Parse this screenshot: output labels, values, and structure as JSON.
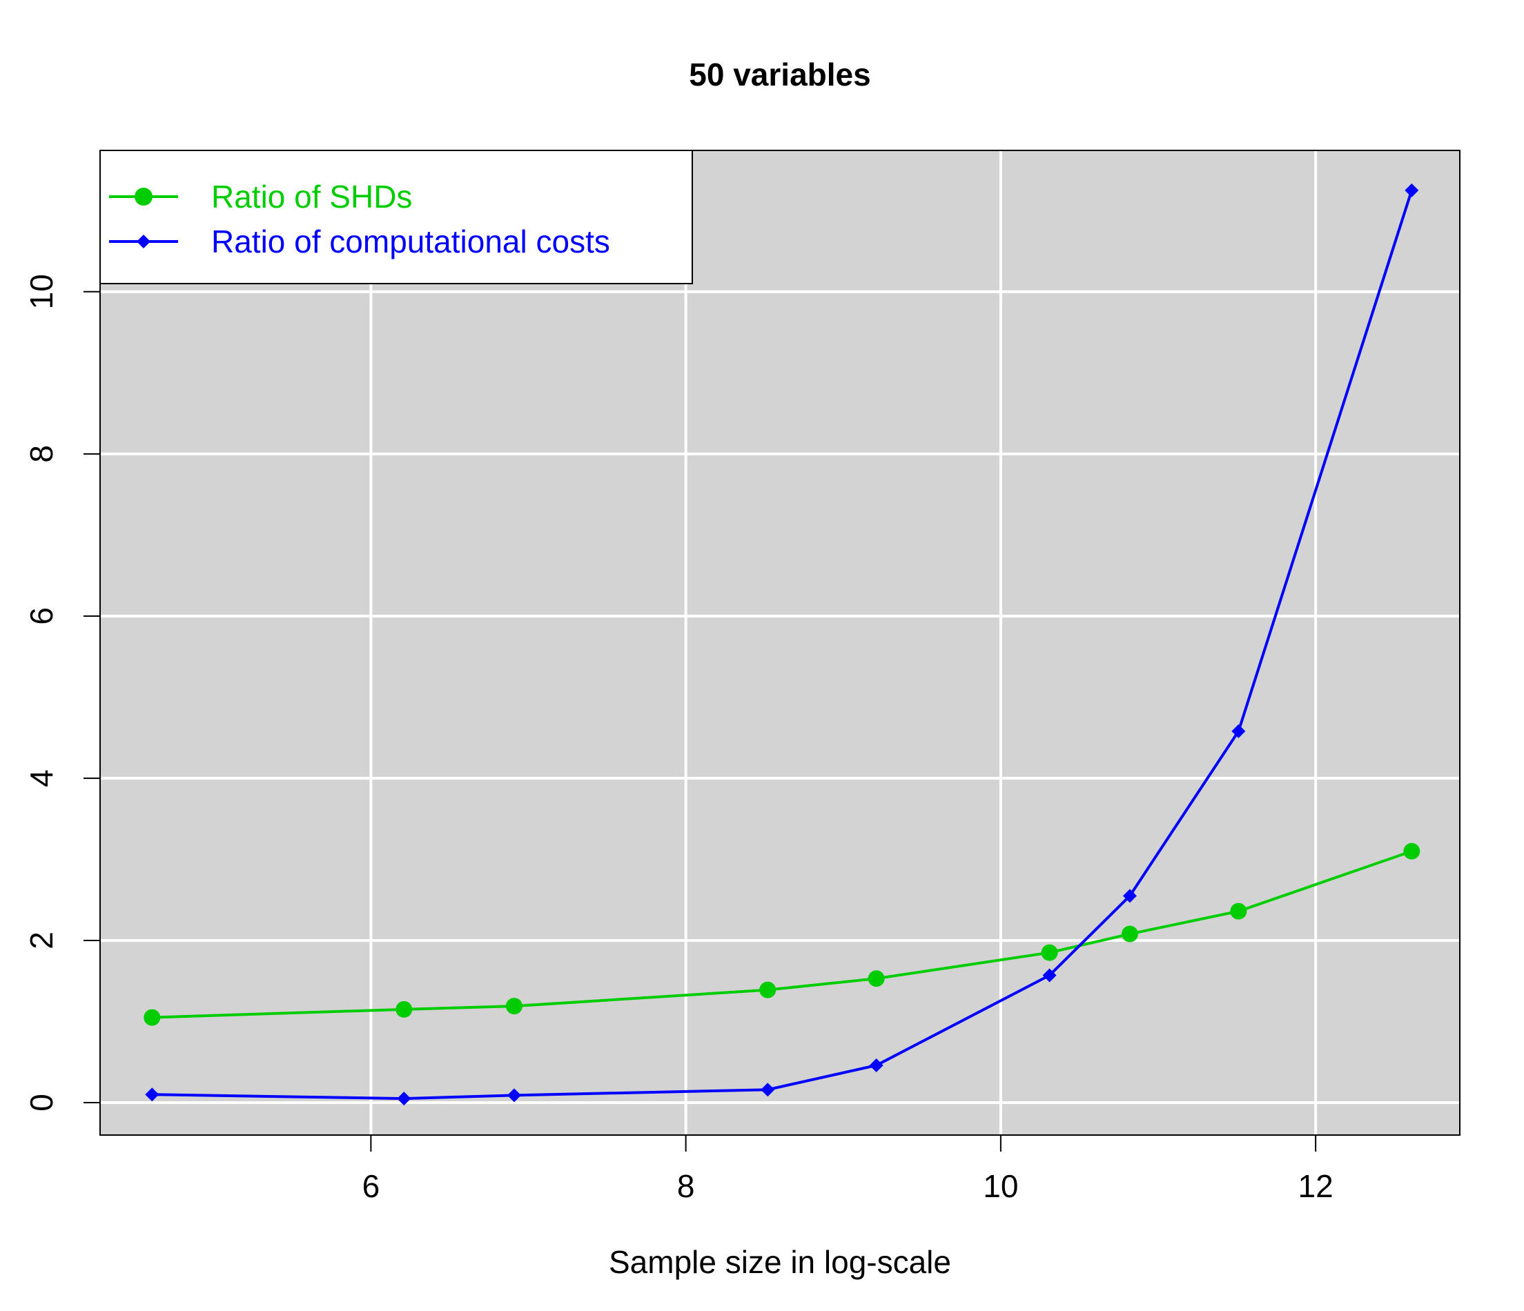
{
  "chart_data": {
    "type": "line",
    "title": "50 variables",
    "xlabel": "Sample size in log-scale",
    "ylabel": "",
    "xlim": [
      4.6,
      12.6
    ],
    "ylim": [
      0,
      11.3
    ],
    "x_ticks": [
      6,
      8,
      10,
      12
    ],
    "y_ticks": [
      0,
      2,
      4,
      6,
      8,
      10
    ],
    "x_tick_labels": [
      "6",
      "8",
      "10",
      "12"
    ],
    "y_tick_labels": [
      "0",
      "2",
      "4",
      "6",
      "8",
      "10"
    ],
    "grid": true,
    "legend_position": "top-left",
    "series": [
      {
        "name": "Ratio of SHDs",
        "color": "#00cd00",
        "marker": "circle",
        "x": [
          4.61,
          6.21,
          6.91,
          8.52,
          9.21,
          10.31,
          10.82,
          11.51,
          12.61
        ],
        "y": [
          1.05,
          1.15,
          1.19,
          1.39,
          1.53,
          1.85,
          2.08,
          2.36,
          3.1
        ]
      },
      {
        "name": "Ratio of computational costs",
        "color": "#0000ff",
        "marker": "diamond",
        "x": [
          4.61,
          6.21,
          6.91,
          8.52,
          9.21,
          10.31,
          10.82,
          11.51,
          12.61
        ],
        "y": [
          0.1,
          0.05,
          0.09,
          0.16,
          0.46,
          1.57,
          2.55,
          4.58,
          11.25
        ]
      }
    ]
  }
}
